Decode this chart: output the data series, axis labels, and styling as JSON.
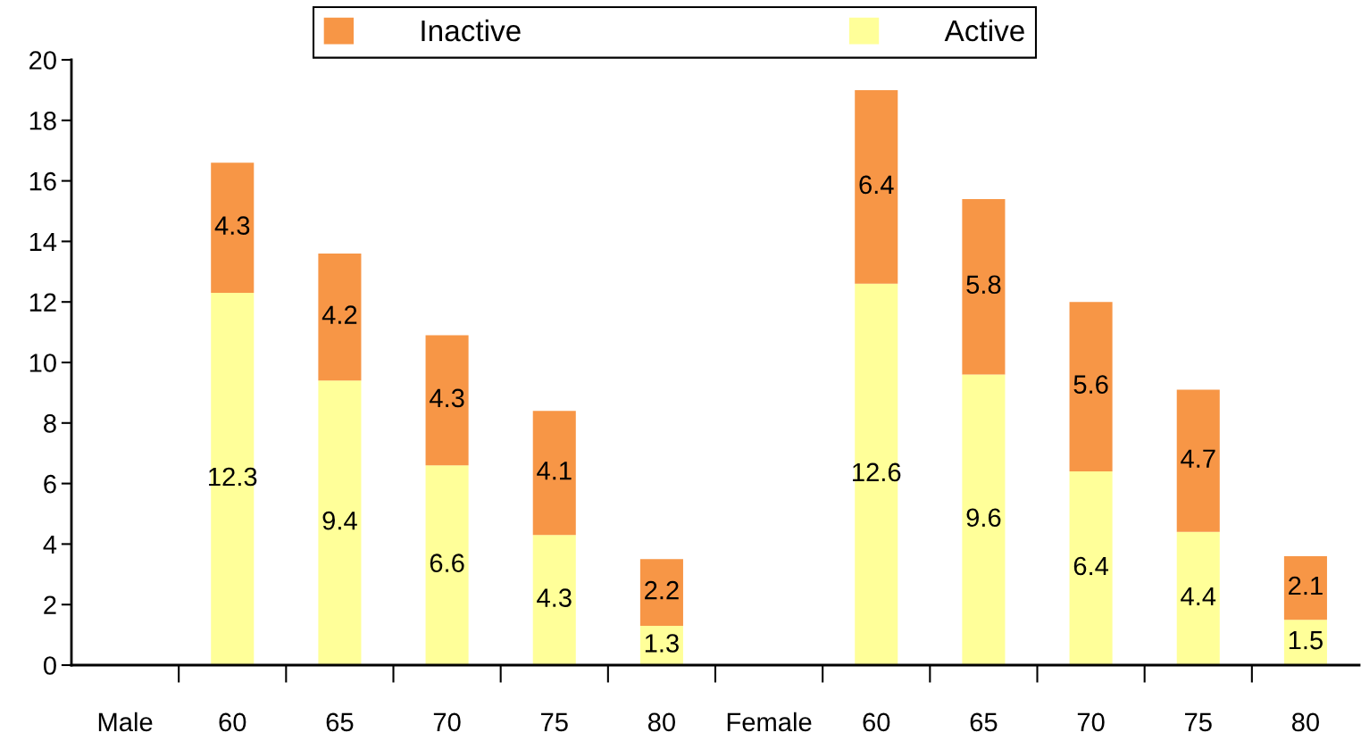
{
  "chart_data": {
    "type": "bar",
    "stacked": true,
    "categories": [
      "Male",
      "60",
      "65",
      "70",
      "75",
      "80",
      "Female",
      "60",
      "65",
      "70",
      "75",
      "80"
    ],
    "series": [
      {
        "name": "Active",
        "color": "#ffff99",
        "values": [
          null,
          12.3,
          9.4,
          6.6,
          4.3,
          1.3,
          null,
          12.6,
          9.6,
          6.4,
          4.4,
          1.5
        ]
      },
      {
        "name": "Inactive",
        "color": "#f79646",
        "values": [
          null,
          4.3,
          4.2,
          4.3,
          4.1,
          2.2,
          null,
          6.4,
          5.8,
          5.6,
          4.7,
          2.1
        ]
      }
    ],
    "ylim": [
      0,
      20
    ],
    "yticks": [
      0,
      2,
      4,
      6,
      8,
      10,
      12,
      14,
      16,
      18,
      20
    ],
    "data_labels": true,
    "legend": "top",
    "grid": false
  }
}
